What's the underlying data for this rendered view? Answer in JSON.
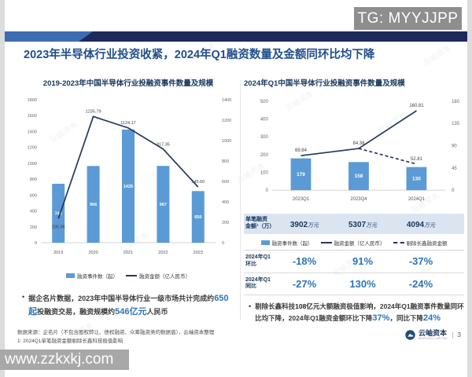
{
  "badge": {
    "text": "TG: MYYJJPP"
  },
  "watermark": {
    "text": "www.zzkxkj.com"
  },
  "slide": {
    "title": "2023年半导体行业投资收紧，2024年Q1融资数量及金额同环比均下降",
    "stamp_text": "云岫资本",
    "page_number": "3",
    "logo": {
      "name": "云岫资本",
      "tagline": "WINSOUL CAPITAL"
    },
    "footer": {
      "line1": "数据来源：企名片（不包含股权转让、债权融资、众筹融资类的数据值），云岫资本整理",
      "line2": "1: 2024Q1单笔融资金额剔除长鑫科技极值影响"
    }
  },
  "colors": {
    "bar_blue": "#5b9bd5",
    "line_navy": "#26365e",
    "accent_blue": "#2e75b6",
    "title_navy": "#1f4e8c",
    "banner_navy": "#1e2a5a",
    "banner_blue": "#3e6cb3",
    "badge_gray": "#8e8e8e",
    "watermark_gray": "#a8a8a8",
    "metric_row_bg": "#dbe5f1"
  },
  "left_section": {
    "chart_title": "2019-2023年中国半导体行业投融资事件数量及规模",
    "legend": [
      {
        "type": "bar",
        "label": "融资事件数（起）"
      },
      {
        "type": "line",
        "label": "融资金额（亿人民币）"
      }
    ],
    "bullet": {
      "parts": [
        {
          "text": "据企名片数据，2023年中国半导体行业一级市场共计完成约",
          "style": "normal"
        },
        {
          "text": "650起",
          "style": "blue"
        },
        {
          "text": "投融资交易，融资规模约",
          "style": "normal"
        },
        {
          "text": "546亿元",
          "style": "blue"
        },
        {
          "text": "人民币",
          "style": "normal"
        }
      ]
    }
  },
  "right_section": {
    "chart_title": "2024年Q1中国半导体行业投融资事件数量及规模",
    "legend": [
      {
        "type": "bar",
        "label": "融资事件数（起）"
      },
      {
        "type": "line",
        "label": "融资金额（亿人民币）"
      },
      {
        "type": "dash",
        "label": "剔除长鑫融资金额"
      }
    ],
    "table": {
      "metric": {
        "label_line1": "单笔融资",
        "label_line2": "金额¹（万）",
        "values": [
          {
            "num": "3902",
            "unit": "万元"
          },
          {
            "num": "5307",
            "unit": "万元"
          },
          {
            "num": "4094",
            "unit": "万元"
          }
        ]
      },
      "qoq": {
        "label_line1": "2024年Q1",
        "label_line2": "环比",
        "values": [
          "-18%",
          "91%",
          "-37%"
        ]
      },
      "yoy": {
        "label_line1": "2024年Q1",
        "label_line2": "同比",
        "values": [
          "-27%",
          "130%",
          "-24%"
        ]
      }
    },
    "bullet": {
      "parts": [
        {
          "text": "剔除长鑫科技",
          "style": "normal"
        },
        {
          "text": "108亿元",
          "style": "bold"
        },
        {
          "text": "大额融资极值影响，2024年Q1融资事件数量同环比均下降，2024年Q1融资金额环比下降",
          "style": "normal"
        },
        {
          "text": "37%",
          "style": "blue"
        },
        {
          "text": "，同比下降",
          "style": "normal"
        },
        {
          "text": "24%",
          "style": "blue"
        }
      ]
    }
  },
  "chart_data": [
    {
      "type": "bar",
      "title": "2019-2023年中国半导体行业投融资事件数量及规模",
      "categories": [
        "2019",
        "2020",
        "2021",
        "2022",
        "2023"
      ],
      "series": [
        {
          "name": "融资事件数（起）",
          "kind": "bar",
          "axis": "left",
          "values": [
            742,
            966,
            1425,
            967,
            650
          ],
          "labels": [
            "742",
            "966",
            "1425",
            "967",
            "650"
          ]
        },
        {
          "name": "融资金额（亿人民币）",
          "kind": "line",
          "axis": "right",
          "dashed": false,
          "values": [
            235.96,
            1235.79,
            1124.17,
            917.35,
            545.6
          ],
          "labels": [
            "235.96",
            "1235.79",
            "1124.17",
            "917.35",
            "545.60"
          ]
        }
      ],
      "left_axis": {
        "min": 0,
        "max": 1800,
        "ticks": [
          0,
          200,
          400,
          600,
          800,
          1000,
          1200,
          1400,
          1600,
          1800
        ]
      },
      "right_axis": {
        "min": 0,
        "max": 1400,
        "ticks": [
          0,
          200,
          400,
          600,
          800,
          1000,
          1200,
          1400
        ]
      },
      "grid": false,
      "legend_position": "bottom"
    },
    {
      "type": "bar",
      "title": "2024年Q1中国半导体行业投融资事件数量及规模",
      "categories": [
        "2023Q1",
        "2023Q4",
        "2024Q1"
      ],
      "series": [
        {
          "name": "融资事件数（起）",
          "kind": "bar",
          "axis": "left",
          "values": [
            179,
            158,
            130
          ],
          "labels": [
            "179",
            "158",
            "130"
          ]
        },
        {
          "name": "融资金额（亿人民币）",
          "kind": "line",
          "axis": "right",
          "dashed": false,
          "values": [
            69.84,
            84.38,
            160.81
          ],
          "labels": [
            "69.84",
            "84.38",
            "160.81"
          ]
        },
        {
          "name": "剔除长鑫融资金额",
          "kind": "line",
          "axis": "right",
          "dashed": true,
          "values": [
            null,
            84.38,
            52.81
          ],
          "labels": [
            null,
            null,
            "52.81"
          ]
        }
      ],
      "left_axis": {
        "min": 0,
        "max": 500,
        "ticks": [
          0,
          100,
          200,
          300,
          400,
          500
        ]
      },
      "right_axis": {
        "min": 0,
        "max": 180,
        "ticks": [
          0,
          45,
          90,
          135,
          180
        ]
      },
      "grid": false,
      "legend_position": "bottom"
    }
  ]
}
